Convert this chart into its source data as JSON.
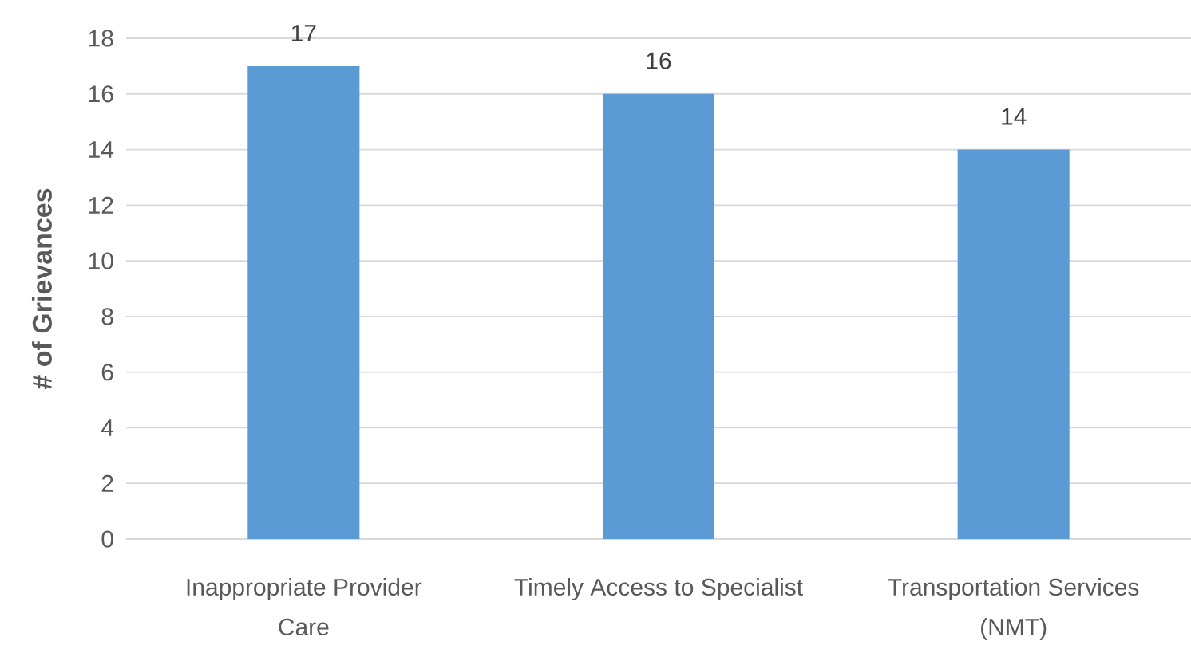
{
  "chart_data": {
    "type": "bar",
    "ylabel": "# of Grievances",
    "categories": [
      "Inappropriate Provider Care",
      "Timely Access to Specialist",
      "Transportation Services (NMT)"
    ],
    "values": [
      17,
      16,
      14
    ],
    "color": "#5b9bd5",
    "ylim": [
      0,
      18
    ],
    "yticks": [
      0,
      2,
      4,
      6,
      8,
      10,
      12,
      14,
      16,
      18
    ],
    "grid": "y",
    "data_labels": true
  }
}
